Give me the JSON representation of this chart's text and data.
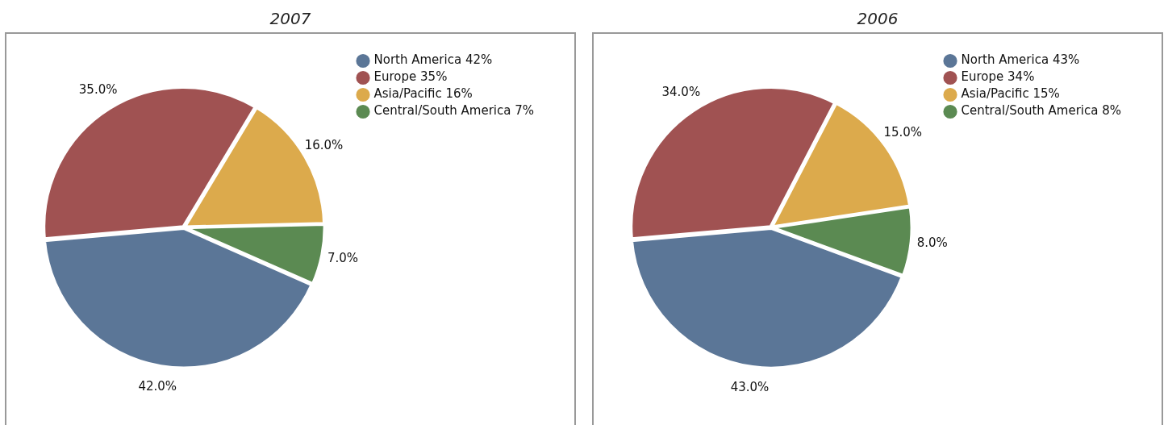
{
  "chart_data": [
    {
      "type": "pie",
      "title": "2007",
      "categories": [
        "North America 42%",
        "Europe 35%",
        "Asia/Pacific 16%",
        "Central/South America 7%"
      ],
      "values": [
        42,
        35,
        16,
        7
      ],
      "colors": [
        "#5b7697",
        "#a05252",
        "#dcaa4c",
        "#5b8a52"
      ],
      "value_labels": [
        "42.0%",
        "35.0%",
        "16.0%",
        "7.0%"
      ],
      "legend": "top right"
    },
    {
      "type": "pie",
      "title": "2006",
      "categories": [
        "North America 43%",
        "Europe 34%",
        "Asia/Pacific 15%",
        "Central/South America 8%"
      ],
      "values": [
        43,
        34,
        15,
        8
      ],
      "colors": [
        "#5b7697",
        "#a05252",
        "#dcaa4c",
        "#5b8a52"
      ],
      "value_labels": [
        "43.0%",
        "34.0%",
        "15.0%",
        "8.0%"
      ],
      "legend": "top right"
    }
  ]
}
